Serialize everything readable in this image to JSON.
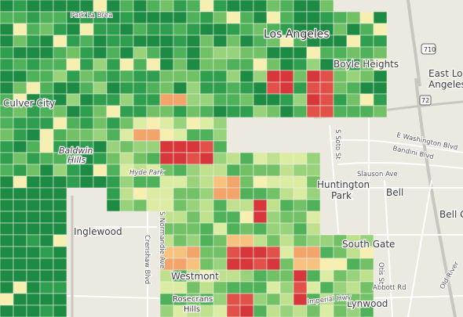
{
  "map": {
    "places": [
      "Los Angeles",
      "Boyle Heights",
      "East Los",
      "Angeles",
      "Culver City",
      "Baldwin",
      "Hills",
      "Huntington",
      "Park",
      "Bell",
      "Bell G",
      "Inglewood",
      "South Gate",
      "Lynwood",
      "Westmont",
      "Rosecrans",
      "Hills",
      "Hyde Park",
      "Park La Brea"
    ],
    "roads": [
      "Slauson Ave",
      "E Washington Blvd",
      "Bandini Blvd",
      "Imperial Hwy",
      "Abbott Rd",
      "Crenshaw Blvd",
      "S Normandie Ave",
      "S Soto St",
      "Otis St",
      "Old River"
    ],
    "shields": [
      "710",
      "72"
    ]
  }
}
